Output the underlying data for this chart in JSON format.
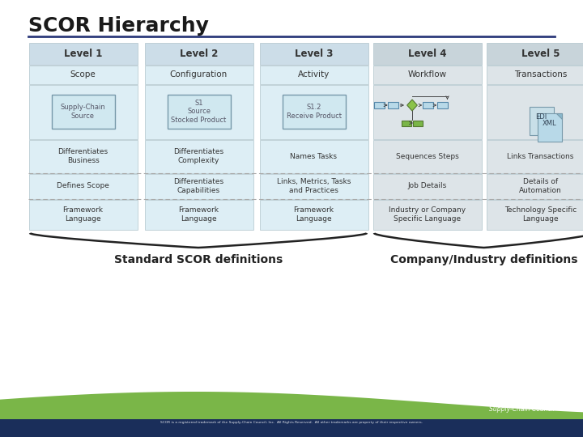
{
  "title": "SCOR Hierarchy",
  "title_fontsize": 18,
  "title_color": "#1a1a1a",
  "bg_color": "#ffffff",
  "header_bg": "#ccdde8",
  "scope_bg": "#ddeef5",
  "gray_bg": "#dde4e8",
  "light_blue": "#b8d9e8",
  "inner_box_bg": "#d0e8f0",
  "green": "#7ab648",
  "levels": [
    "Level 1",
    "Level 2",
    "Level 3",
    "Level 4",
    "Level 5"
  ],
  "scopes": [
    "Scope",
    "Configuration",
    "Activity",
    "Workflow",
    "Transactions"
  ],
  "box_labels": [
    "Supply-Chain\nSource",
    "S1\nSource\nStocked Product",
    "S1.2\nReceive Product"
  ],
  "row4_text": [
    "Differentiates\nBusiness",
    "Differentiates\nComplexity",
    "Names Tasks",
    "Sequences Steps",
    "Links Transactions"
  ],
  "row5_text": [
    "Defines Scope",
    "Differentiates\nCapabilities",
    "Links, Metrics, Tasks\nand Practices",
    "Job Details",
    "Details of\nAutomation"
  ],
  "row6_text": [
    "Framework\nLanguage",
    "Framework\nLanguage",
    "Framework\nLanguage",
    "Industry or Company\nSpecific Language",
    "Technology Specific\nLanguage"
  ],
  "bottom_left_label": "Standard SCOR definitions",
  "bottom_right_label": "Company/Industry definitions",
  "separator_color": "#2d3a7a",
  "bottom_green": "#7ab648",
  "bottom_navy": "#1a2e5a",
  "dashed_color": "#aaaaaa",
  "cell_edge_color": "#b0c4cc",
  "text_color": "#333333"
}
